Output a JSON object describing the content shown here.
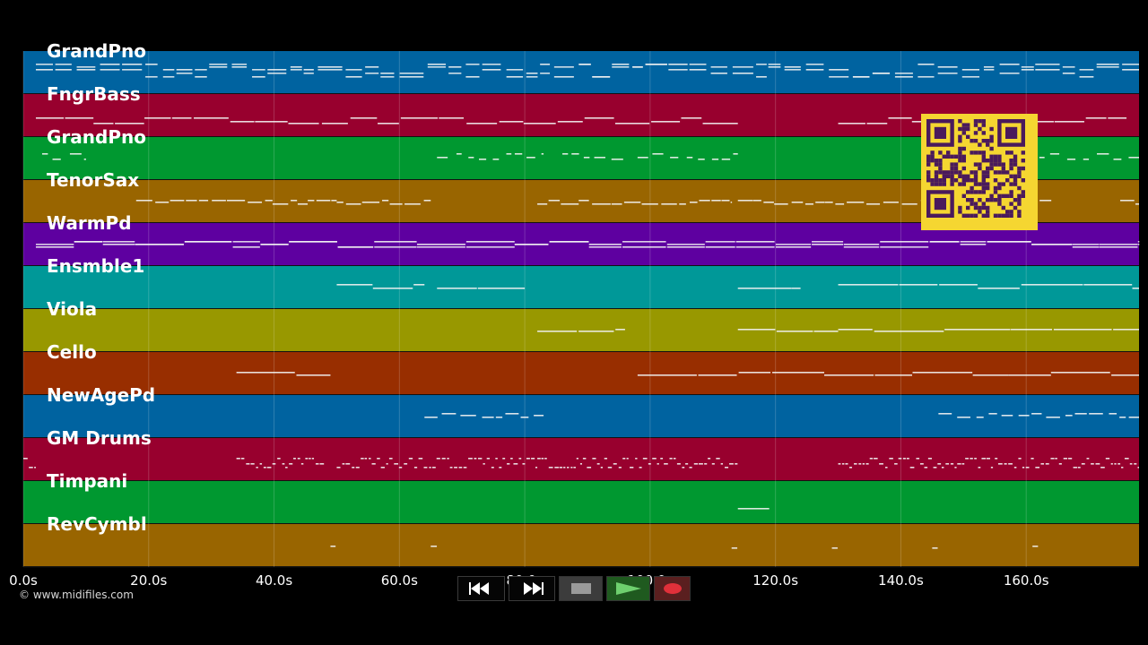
{
  "tracks": [
    {
      "name": "GrandPno",
      "color": "#0063a0",
      "pattern": "dense"
    },
    {
      "name": "FngrBass",
      "color": "#98002e",
      "pattern": "bass"
    },
    {
      "name": "GrandPno",
      "color": "#009830",
      "pattern": "sparse"
    },
    {
      "name": "TenorSax",
      "color": "#996500",
      "pattern": "melody"
    },
    {
      "name": "WarmPd",
      "color": "#5e00a0",
      "pattern": "pad"
    },
    {
      "name": "Ensmble1",
      "color": "#009898",
      "pattern": "strings"
    },
    {
      "name": "Viola",
      "color": "#989800",
      "pattern": "viola"
    },
    {
      "name": "Cello",
      "color": "#982e00",
      "pattern": "cello"
    },
    {
      "name": "NewAgePd",
      "color": "#0063a0",
      "pattern": "newage"
    },
    {
      "name": "GM Drums",
      "color": "#98002e",
      "pattern": "drums"
    },
    {
      "name": "Timpani",
      "color": "#009830",
      "pattern": "timpani"
    },
    {
      "name": "RevCymbl",
      "color": "#996500",
      "pattern": "cymbal"
    }
  ],
  "timeline": {
    "max_seconds": 178,
    "ticks": [
      {
        "value": 0,
        "label": "0.0s"
      },
      {
        "value": 20,
        "label": "20.0s"
      },
      {
        "value": 40,
        "label": "40.0s"
      },
      {
        "value": 60,
        "label": "60.0s"
      },
      {
        "value": 80,
        "label": "80.0s"
      },
      {
        "value": 100,
        "label": "100.0s"
      },
      {
        "value": 120,
        "label": "120.0s"
      },
      {
        "value": 140,
        "label": "140.0s"
      },
      {
        "value": 160,
        "label": "160.0s"
      }
    ]
  },
  "copyright": "© www.midifiles.com",
  "transport": {
    "rewind_icon": "rewind-icon",
    "forward_icon": "fast-forward-icon",
    "stop_icon": "stop-icon",
    "play_icon": "play-icon",
    "record_icon": "record-icon"
  },
  "qr_icon": "qr-code-icon"
}
